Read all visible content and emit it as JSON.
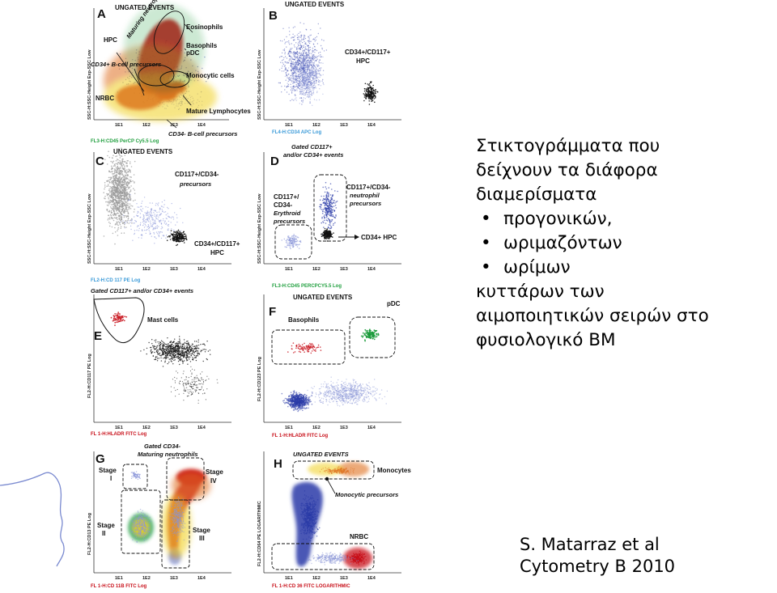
{
  "slide": {
    "title_lines": [
      "Στικτογράμματα που",
      "δείχνουν τα διάφορα",
      "διαμερίσματα"
    ],
    "bullets": [
      "προγονικών,",
      "ωριμαζόντων",
      "ωρίμων"
    ],
    "bullet_symbol": "•",
    "tail_lines": [
      "κυττάρων των",
      "αιμοποιητικών σειρών στο",
      "φυσιολογικό BM"
    ],
    "citation_lines": [
      "S. Matarraz et al",
      "Cytometry B 2010"
    ]
  },
  "panels": [
    {
      "letter": "A",
      "header": "UNGATED EVENTS",
      "y_axis": "SSC-H:SSC-Height Exp-SSC Low",
      "x_axis": "FL3-H:CD45 PerCP Cy5.5 Log",
      "labels": [
        "HPC",
        "Maturing neutrophils",
        "Eosinophils",
        "Basophils",
        "pDC",
        "CD34+ B-cell precursors",
        "Monocytic cells",
        "NRBC",
        "Mature Lymphocytes",
        "CD34- B-cell precursors"
      ]
    },
    {
      "letter": "B",
      "header": "UNGATED EVENTS",
      "y_axis": "SSC-H:SSC-Height Exp-SSC Low",
      "x_axis": "FL4-H:CD34 APC Log",
      "labels": [
        "CD34+/CD117+",
        "HPC"
      ]
    },
    {
      "letter": "C",
      "header": "UNGATED EVENTS",
      "y_axis": "SSC-H:SSC-Height Exp-SSC Low",
      "x_axis": "FL2-H:CD 117 PE Log",
      "labels": [
        "CD117+/CD34-",
        "precursors",
        "CD34+/CD117+",
        "HPC"
      ]
    },
    {
      "letter": "D",
      "header": "Gated CD117+",
      "header2": "and/or CD34+ events",
      "y_axis": "SSC-H:SSC-Height Exp-SSC Low",
      "x_axis": "FL3-H:CD45 PERCPCY5.5 Log",
      "labels": [
        "CD117+/CD34-",
        "neutrophil",
        "precursors",
        "CD117+/",
        "CD34-",
        "Erythroid",
        "precursors",
        "CD34+ HPC"
      ]
    },
    {
      "letter": "E",
      "header": "Gated CD117+ and/or CD34+ events",
      "y_axis": "FL2-H:CD117 PE Log",
      "x_axis": "FL 1-H:HLADR FITC Log",
      "labels": [
        "Mast cells"
      ]
    },
    {
      "letter": "F",
      "header": "UNGATED EVENTS",
      "y_axis": "FL2-H:CD123 PE Log",
      "x_axis": "FL 1-H:HLADR FITC Log",
      "labels": [
        "Basophils",
        "pDC"
      ]
    },
    {
      "letter": "G",
      "header": "Gated CD34-",
      "header2": "Maturing neutrophils",
      "y_axis": "FL2-H:CD13 PE Log",
      "x_axis": "FL 1-H:CD 11B FITC Log",
      "labels": [
        "Stage",
        "I",
        "Stage",
        "II",
        "Stage",
        "III",
        "Stage",
        "IV"
      ]
    },
    {
      "letter": "H",
      "header": "UNGATED EVENTS",
      "y_axis": "FL2-H:CD64 PE LOGARITHMIC",
      "x_axis": "FL 1-H:CD 36 FITC LOGARITHMIC",
      "labels": [
        "Monocytes",
        "Monocytic precursors",
        "NRBC"
      ]
    }
  ],
  "tick_labels": [
    "1E1",
    "1E2",
    "1E3",
    "1E4"
  ],
  "y_tick_labels": [
    "200",
    "400",
    "600",
    "800",
    "1000"
  ],
  "colors": {
    "red": "#c8101a",
    "orange": "#e07020",
    "yellow": "#f0d020",
    "green": "#1a9a3a",
    "blue": "#2a3aa8",
    "lightblue": "#8a96d8",
    "grey": "#9a9a9a",
    "black": "#111111",
    "axis_green": "#22a040",
    "axis_blue": "#3a9ad8"
  }
}
